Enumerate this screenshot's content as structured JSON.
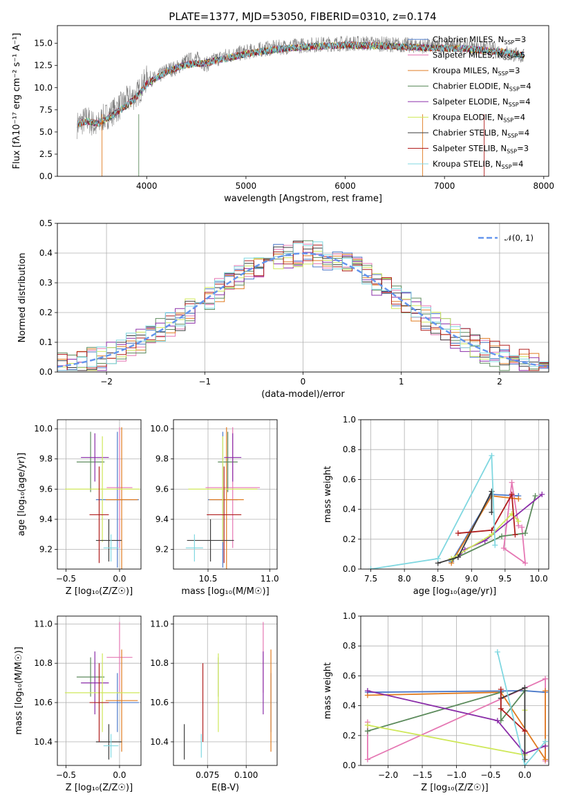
{
  "figure": {
    "title": "PLATE=1377, MJD=53050, FIBERID=0310, z=0.174"
  },
  "panels": {
    "spectrum": {
      "xlabel": "wavelength [Angstrom, rest frame]",
      "ylabel": "Flux [fλ10⁻¹⁷ erg cm⁻² s⁻¹ A⁻¹]",
      "xticks": [
        "4000",
        "5000",
        "6000",
        "7000",
        "8000"
      ],
      "yticks": [
        "0.0",
        "2.5",
        "5.0",
        "7.5",
        "10.0",
        "12.5",
        "15.0"
      ]
    },
    "residuals": {
      "xlabel": "(data-model)/error",
      "ylabel": "Normed distribution",
      "xticks": [
        "−2",
        "−1",
        "0",
        "1",
        "2"
      ],
      "yticks": [
        "0.0",
        "0.1",
        "0.2",
        "0.3",
        "0.4",
        "0.5"
      ],
      "legend": "𝒩(0, 1)"
    },
    "age_Z": {
      "xlabel": "Z [log₁₀(Z/Z☉)]",
      "ylabel": "age  [log₁₀(age/yr)]",
      "xticks": [
        "−0.5",
        "0.0"
      ],
      "yticks": [
        "9.2",
        "9.4",
        "9.6",
        "9.8",
        "10.0"
      ]
    },
    "age_mass": {
      "xlabel": "mass [log₁₀(M/M☉)]",
      "xticks": [
        "10.5",
        "11.0"
      ],
      "yticks": [
        "9.2",
        "9.4",
        "9.6",
        "9.8",
        "10.0"
      ]
    },
    "weight_age": {
      "xlabel": "age  [log₁₀(age/yr)]",
      "ylabel": "mass weight",
      "xticks": [
        "7.5",
        "8.0",
        "8.5",
        "9.0",
        "9.5",
        "10.0"
      ],
      "yticks": [
        "0.0",
        "0.2",
        "0.4",
        "0.6",
        "0.8",
        "1.0"
      ]
    },
    "mass_Z": {
      "xlabel": "Z [log₁₀(Z/Z☉)]",
      "ylabel": "mass [log₁₀(M/M☉)]",
      "xticks": [
        "−0.5",
        "0.0"
      ],
      "yticks": [
        "10.4",
        "10.6",
        "10.8",
        "11.0"
      ]
    },
    "mass_EBV": {
      "xlabel": "E(B-V)",
      "xticks": [
        "0.075",
        "0.100"
      ],
      "yticks": [
        "10.4",
        "10.6",
        "10.8",
        "11.0"
      ]
    },
    "weight_Z": {
      "xlabel": "Z [log₁₀(Z/Z☉)]",
      "ylabel": "mass weight",
      "xticks": [
        "−2.0",
        "−1.5",
        "−1.0",
        "−0.5",
        "0.0"
      ],
      "yticks": [
        "0.0",
        "0.2",
        "0.4",
        "0.6",
        "0.8",
        "1.0"
      ]
    }
  },
  "chart_data": [
    {
      "type": "line",
      "title": "PLATE=1377, MJD=53050, FIBERID=0310, z=0.174",
      "xlabel": "wavelength [Angstrom, rest frame]",
      "ylabel": "Flux [fλ10⁻¹⁷ erg cm⁻² s⁻¹ A⁻¹]",
      "xlim": [
        3100,
        8050
      ],
      "ylim": [
        0,
        17
      ],
      "legend_position": "upper right",
      "grid": false,
      "data_series": {
        "name": "",
        "color": "#808080",
        "x": [
          3300,
          3400,
          3500,
          3550,
          3600,
          3700,
          3800,
          3900,
          4000,
          4100,
          4200,
          4300,
          4400,
          4500,
          4600,
          4700,
          4800,
          4900,
          5000,
          5200,
          5400,
          5600,
          5800,
          6000,
          6200,
          6400,
          6600,
          6800,
          7000,
          7200,
          7400,
          7600,
          7800
        ],
        "y": [
          5.8,
          6.5,
          5.5,
          6.5,
          6.8,
          7.6,
          8.6,
          9.2,
          11.0,
          11.0,
          12.0,
          12.2,
          13.0,
          13.3,
          12.6,
          13.2,
          13.6,
          13.8,
          14.0,
          14.4,
          14.6,
          14.8,
          14.9,
          15.0,
          15.0,
          14.9,
          14.8,
          14.7,
          14.6,
          14.7,
          14.4,
          14.0,
          13.5
        ]
      },
      "series": [
        {
          "name": "Chabrier MILES, N$_{SSP}$=3",
          "label": "Chabrier MILES, N",
          "sub": "SSP",
          "suffix": "=3",
          "color": "#4a78c9"
        },
        {
          "name": "Salpeter MILES, N$_{SSP}$=5",
          "label": "Salpeter MILES, N",
          "sub": "SSP",
          "suffix": "=5",
          "color": "#e577b3"
        },
        {
          "name": "Kroupa MILES, N$_{SSP}$=3",
          "label": "Kroupa MILES, N",
          "sub": "SSP",
          "suffix": "=3",
          "color": "#e07b20"
        },
        {
          "name": "Chabrier ELODIE, N$_{SSP}$=4",
          "label": "Chabrier ELODIE, N",
          "sub": "SSP",
          "suffix": "=4",
          "color": "#5b8a5b"
        },
        {
          "name": "Salpeter ELODIE, N$_{SSP}$=4",
          "label": "Salpeter ELODIE, N",
          "sub": "SSP",
          "suffix": "=4",
          "color": "#8a2da8"
        },
        {
          "name": "Kroupa ELODIE, N$_{SSP}$=4",
          "label": "Kroupa ELODIE, N",
          "sub": "SSP",
          "suffix": "=4",
          "color": "#cfe85a"
        },
        {
          "name": "Chabrier STELIB, N$_{SSP}$=4",
          "label": "Chabrier STELIB, N",
          "sub": "SSP",
          "suffix": "=4",
          "color": "#3a3a3a"
        },
        {
          "name": "Salpeter STELIB, N$_{SSP}$=3",
          "label": "Salpeter STELIB, N",
          "sub": "SSP",
          "suffix": "=3",
          "color": "#b01c1c"
        },
        {
          "name": "Kroupa STELIB, N$_{SSP}$=4",
          "label": "Kroupa STELIB, N",
          "sub": "SSP",
          "suffix": "=4",
          "color": "#7fd7e0"
        }
      ],
      "model_x": [
        3300,
        3400,
        3500,
        3600,
        3700,
        3800,
        3900,
        4000,
        4200,
        4400,
        4600,
        4800,
        5000,
        5300,
        5600,
        6000,
        6400,
        6800,
        7200,
        7600,
        7800
      ],
      "model_y": [
        5.9,
        6.2,
        6.0,
        6.5,
        7.2,
        8.0,
        9.0,
        10.4,
        11.8,
        12.6,
        12.8,
        13.3,
        13.8,
        14.3,
        14.6,
        14.8,
        14.7,
        14.5,
        14.4,
        14.0,
        13.6
      ]
    },
    {
      "type": "bar",
      "xlabel": "(data-model)/error",
      "ylabel": "Normed distribution",
      "xlim": [
        -2.5,
        2.5
      ],
      "ylim": [
        0,
        0.5
      ],
      "grid": true,
      "legend_position": "upper right",
      "reference": {
        "name": "𝒩(0, 1)",
        "color": "#6495ed",
        "style": "dashed"
      },
      "series_colors": [
        "#4a78c9",
        "#e577b3",
        "#e07b20",
        "#5b8a5b",
        "#8a2da8",
        "#cfe85a",
        "#3a3a3a",
        "#b01c1c",
        "#7fd7e0"
      ]
    },
    {
      "type": "scatter",
      "xlabel": "Z [log₁₀(Z/Z☉)]",
      "ylabel": "age  [log₁₀(age/yr)]",
      "xlim": [
        -0.58,
        0.2
      ],
      "ylim": [
        9.07,
        10.06
      ],
      "grid": true,
      "points": [
        {
          "series": "Chabrier MILES",
          "x": -0.02,
          "y": 9.53,
          "xerr": 0.2,
          "yerr": 0.45
        },
        {
          "series": "Salpeter MILES",
          "x": 0.0,
          "y": 9.61,
          "xerr": 0.12,
          "yerr": 0.4
        },
        {
          "series": "Kroupa MILES",
          "x": 0.02,
          "y": 9.53,
          "xerr": 0.15,
          "yerr": 0.48
        },
        {
          "series": "Chabrier ELODIE",
          "x": -0.27,
          "y": 9.78,
          "xerr": 0.13,
          "yerr": 0.2
        },
        {
          "series": "Salpeter ELODIE",
          "x": -0.23,
          "y": 9.81,
          "xerr": 0.13,
          "yerr": 0.16
        },
        {
          "series": "Kroupa ELODIE",
          "x": -0.16,
          "y": 9.6,
          "xerr": 0.35,
          "yerr": 0.35
        },
        {
          "series": "Chabrier STELIB",
          "x": -0.1,
          "y": 9.26,
          "xerr": 0.12,
          "yerr": 0.14
        },
        {
          "series": "Salpeter STELIB",
          "x": -0.19,
          "y": 9.43,
          "xerr": 0.09,
          "yerr": 0.32
        },
        {
          "series": "Kroupa STELIB",
          "x": -0.08,
          "y": 9.21,
          "xerr": 0.07,
          "yerr": 0.09
        }
      ]
    },
    {
      "type": "scatter",
      "xlabel": "mass [log₁₀(M/M☉)]",
      "xlim": [
        10.22,
        11.06
      ],
      "ylim": [
        9.07,
        10.06
      ],
      "grid": true,
      "points": [
        {
          "series": "Chabrier MILES",
          "x": 10.62,
          "y": 9.53,
          "xerr": 0.12,
          "yerr": 0.45
        },
        {
          "series": "Salpeter MILES",
          "x": 10.7,
          "y": 9.61,
          "xerr": 0.22,
          "yerr": 0.4
        },
        {
          "series": "Kroupa MILES",
          "x": 10.65,
          "y": 9.53,
          "xerr": 0.14,
          "yerr": 0.48
        },
        {
          "series": "Chabrier ELODIE",
          "x": 10.66,
          "y": 9.78,
          "xerr": 0.08,
          "yerr": 0.2
        },
        {
          "series": "Salpeter ELODIE",
          "x": 10.7,
          "y": 9.81,
          "xerr": 0.07,
          "yerr": 0.16
        },
        {
          "series": "Kroupa ELODIE",
          "x": 10.62,
          "y": 9.6,
          "xerr": 0.28,
          "yerr": 0.35
        },
        {
          "series": "Chabrier STELIB",
          "x": 10.52,
          "y": 9.26,
          "xerr": 0.19,
          "yerr": 0.14
        },
        {
          "series": "Salpeter STELIB",
          "x": 10.63,
          "y": 9.43,
          "xerr": 0.14,
          "yerr": 0.32
        },
        {
          "series": "Kroupa STELIB",
          "x": 10.39,
          "y": 9.21,
          "xerr": 0.07,
          "yerr": 0.09
        }
      ]
    },
    {
      "type": "line",
      "xlabel": "age  [log₁₀(age/yr)]",
      "ylabel": "mass weight",
      "xlim": [
        7.35,
        10.15
      ],
      "ylim": [
        0,
        1
      ],
      "grid": true,
      "series": [
        {
          "name": "Chabrier MILES",
          "points": [
            [
              8.7,
              0.05
            ],
            [
              9.3,
              0.5
            ],
            [
              9.7,
              0.49
            ]
          ]
        },
        {
          "name": "Salpeter MILES",
          "points": [
            [
              9.7,
              0.29
            ],
            [
              9.6,
              0.58
            ],
            [
              9.48,
              0.14
            ],
            [
              9.8,
              0.04
            ],
            [
              9.75,
              0.28
            ]
          ]
        },
        {
          "name": "Kroupa MILES",
          "points": [
            [
              8.7,
              0.04
            ],
            [
              9.3,
              0.49
            ],
            [
              9.7,
              0.47
            ]
          ]
        },
        {
          "name": "Chabrier ELODIE",
          "points": [
            [
              8.7,
              0.06
            ],
            [
              9.45,
              0.22
            ],
            [
              9.8,
              0.24
            ],
            [
              9.95,
              0.49
            ]
          ]
        },
        {
          "name": "Salpeter ELODIE",
          "points": [
            [
              8.8,
              0.08
            ],
            [
              8.9,
              0.13
            ],
            [
              9.2,
              0.19
            ],
            [
              10.05,
              0.5
            ]
          ]
        },
        {
          "name": "Kroupa ELODIE",
          "points": [
            [
              8.7,
              0.07
            ],
            [
              9.3,
              0.23
            ],
            [
              9.6,
              0.37
            ],
            [
              9.7,
              0.32
            ]
          ]
        },
        {
          "name": "Chabrier STELIB",
          "points": [
            [
              8.5,
              0.04
            ],
            [
              8.8,
              0.08
            ],
            [
              9.3,
              0.52
            ],
            [
              9.3,
              0.38
            ]
          ]
        },
        {
          "name": "Salpeter STELIB",
          "points": [
            [
              8.8,
              0.24
            ],
            [
              9.3,
              0.26
            ],
            [
              9.6,
              0.5
            ],
            [
              9.65,
              0.23
            ]
          ]
        },
        {
          "name": "Kroupa STELIB",
          "points": [
            [
              7.5,
              0.0
            ],
            [
              8.5,
              0.07
            ],
            [
              9.3,
              0.76
            ],
            [
              9.35,
              0.16
            ]
          ]
        }
      ]
    },
    {
      "type": "scatter",
      "xlabel": "Z [log₁₀(Z/Z☉)]",
      "ylabel": "mass [log₁₀(M/M☉)]",
      "xlim": [
        -0.58,
        0.2
      ],
      "ylim": [
        10.28,
        11.04
      ],
      "grid": true,
      "points": [
        {
          "series": "Chabrier MILES",
          "x": -0.02,
          "y": 10.6,
          "xerr": 0.2,
          "yerr": 0.15
        },
        {
          "series": "Salpeter MILES",
          "x": 0.0,
          "y": 10.83,
          "xerr": 0.12,
          "yerr": 0.18
        },
        {
          "series": "Kroupa MILES",
          "x": 0.02,
          "y": 10.61,
          "xerr": 0.15,
          "yerr": 0.26
        },
        {
          "series": "Chabrier ELODIE",
          "x": -0.27,
          "y": 10.73,
          "xerr": 0.13,
          "yerr": 0.1
        },
        {
          "series": "Salpeter ELODIE",
          "x": -0.23,
          "y": 10.7,
          "xerr": 0.13,
          "yerr": 0.16
        },
        {
          "series": "Kroupa ELODIE",
          "x": -0.16,
          "y": 10.65,
          "xerr": 0.35,
          "yerr": 0.2
        },
        {
          "series": "Chabrier STELIB",
          "x": -0.1,
          "y": 10.4,
          "xerr": 0.12,
          "yerr": 0.09
        },
        {
          "series": "Salpeter STELIB",
          "x": -0.19,
          "y": 10.6,
          "xerr": 0.09,
          "yerr": 0.2
        },
        {
          "series": "Kroupa STELIB",
          "x": -0.08,
          "y": 10.38,
          "xerr": 0.07,
          "yerr": 0.06
        }
      ]
    },
    {
      "type": "scatter",
      "xlabel": "E(B-V)",
      "xlim": [
        0.053,
        0.12
      ],
      "ylim": [
        10.28,
        11.04
      ],
      "grid": true,
      "points": [
        {
          "series": "Chabrier MILES",
          "x": 0.116,
          "y": 10.6,
          "yerr": 0.15
        },
        {
          "series": "Salpeter MILES",
          "x": 0.111,
          "y": 10.83,
          "yerr": 0.18
        },
        {
          "series": "Kroupa MILES",
          "x": 0.116,
          "y": 10.61,
          "yerr": 0.26
        },
        {
          "series": "Chabrier ELODIE",
          "x": 0.082,
          "y": 10.73,
          "yerr": 0.1
        },
        {
          "series": "Salpeter ELODIE",
          "x": 0.111,
          "y": 10.7,
          "yerr": 0.16
        },
        {
          "series": "Kroupa ELODIE",
          "x": 0.082,
          "y": 10.65,
          "yerr": 0.2
        },
        {
          "series": "Chabrier STELIB",
          "x": 0.06,
          "y": 10.4,
          "yerr": 0.09
        },
        {
          "series": "Salpeter STELIB",
          "x": 0.072,
          "y": 10.6,
          "yerr": 0.2
        },
        {
          "series": "Kroupa STELIB",
          "x": 0.071,
          "y": 10.38,
          "yerr": 0.06
        }
      ]
    },
    {
      "type": "line",
      "xlabel": "Z [log₁₀(Z/Z☉)]",
      "ylabel": "mass weight",
      "xlim": [
        -2.4,
        0.35
      ],
      "ylim": [
        0,
        1
      ],
      "grid": true,
      "series": [
        {
          "name": "Chabrier MILES",
          "points": [
            [
              -2.3,
              0.49
            ],
            [
              0.0,
              0.5
            ],
            [
              0.3,
              0.49
            ]
          ]
        },
        {
          "name": "Salpeter MILES",
          "points": [
            [
              -2.3,
              0.29
            ],
            [
              -2.3,
              0.04
            ],
            [
              0.3,
              0.58
            ],
            [
              0.3,
              0.03
            ]
          ]
        },
        {
          "name": "Kroupa MILES",
          "points": [
            [
              -2.3,
              0.47
            ],
            [
              -0.35,
              0.49
            ],
            [
              0.3,
              0.04
            ],
            [
              0.3,
              0.5
            ]
          ]
        },
        {
          "name": "Chabrier ELODIE",
          "points": [
            [
              -2.3,
              0.23
            ],
            [
              -0.35,
              0.49
            ],
            [
              -0.35,
              0.3
            ],
            [
              0.0,
              0.5
            ]
          ]
        },
        {
          "name": "Salpeter ELODIE",
          "points": [
            [
              -2.3,
              0.5
            ],
            [
              -0.4,
              0.3
            ],
            [
              0.0,
              0.08
            ],
            [
              0.3,
              0.13
            ]
          ]
        },
        {
          "name": "Kroupa ELODIE",
          "points": [
            [
              -2.3,
              0.27
            ],
            [
              0.0,
              0.07
            ],
            [
              0.0,
              0.37
            ]
          ]
        },
        {
          "name": "Chabrier STELIB",
          "points": [
            [
              -0.35,
              0.45
            ],
            [
              0.0,
              0.52
            ],
            [
              0.0,
              0.04
            ]
          ]
        },
        {
          "name": "Salpeter STELIB",
          "points": [
            [
              -0.35,
              0.51
            ],
            [
              -0.35,
              0.38
            ],
            [
              0.0,
              0.23
            ]
          ]
        },
        {
          "name": "Kroupa STELIB",
          "points": [
            [
              -0.4,
              0.76
            ],
            [
              0.0,
              0.0
            ],
            [
              0.3,
              0.16
            ]
          ]
        }
      ]
    }
  ]
}
